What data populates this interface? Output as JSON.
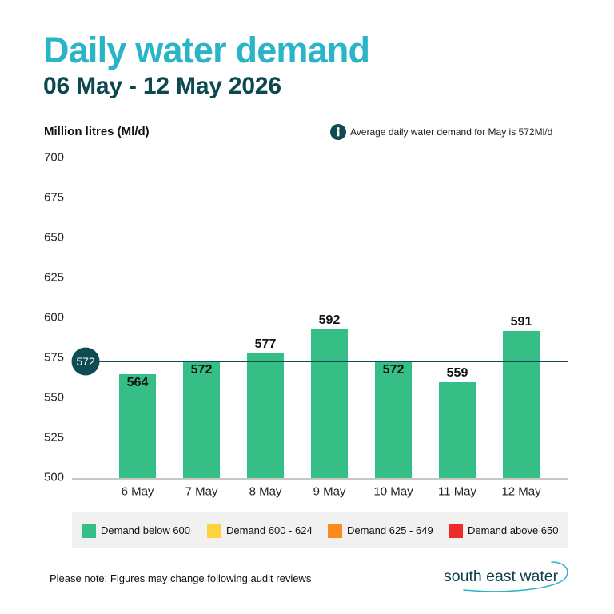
{
  "colors": {
    "title": "#2ab4c7",
    "subtitle": "#0b4850",
    "bar": "#35bf87",
    "reference_line": "#0e4b52",
    "axis": "#c8c8c8",
    "legend_background": "#f1f1f1",
    "logo_text": "#0b3d4a",
    "logo_swoosh": "#2ab4c7"
  },
  "chart_data": {
    "type": "bar",
    "title": "Daily water demand",
    "subtitle": "06 May - 12 May 2026",
    "ylabel": "Million litres (Ml/d)",
    "categories": [
      "6 May",
      "7 May",
      "8 May",
      "9 May",
      "10 May",
      "11 May",
      "12 May"
    ],
    "values": [
      564,
      572,
      577,
      592,
      572,
      559,
      591
    ],
    "ylim": [
      500,
      700
    ],
    "yticks": [
      500,
      525,
      550,
      575,
      600,
      625,
      650,
      675,
      700
    ],
    "grid": false,
    "reference_line": {
      "value": 572
    },
    "annotation": {
      "icon": "info-icon",
      "text": "Average daily water demand for May is 572Ml/d"
    },
    "legend_position": "bottom",
    "legend": [
      {
        "label": "Demand below 600",
        "color": "#35bf87"
      },
      {
        "label": "Demand 600 - 624",
        "color": "#fdd23c"
      },
      {
        "label": "Demand 625 - 649",
        "color": "#fb8a1f"
      },
      {
        "label": "Demand above 650",
        "color": "#ec2b2b"
      }
    ]
  },
  "note": "Please note: Figures may change following audit reviews",
  "logo": {
    "text": "south east water"
  }
}
